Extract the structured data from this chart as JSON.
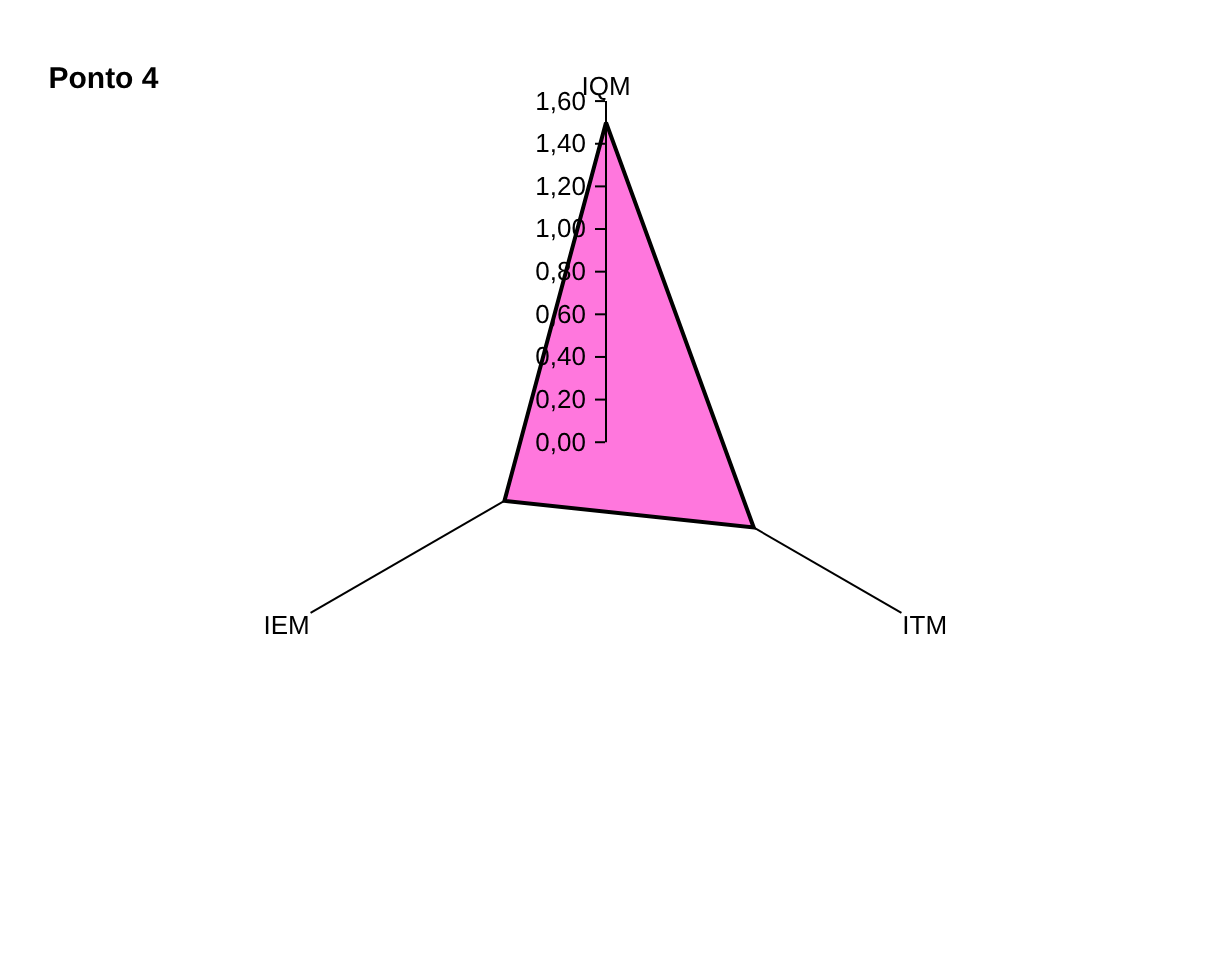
{
  "chart_data": {
    "type": "radar",
    "title": "Ponto 4",
    "categories": [
      "IQM",
      "ITM",
      "IEM"
    ],
    "series": [
      {
        "color": "#ff77dd",
        "values": [
          1.5,
          0.8,
          0.55
        ]
      }
    ],
    "ylim": [
      0,
      1.6
    ],
    "yticks": [
      {
        "value": 0,
        "label": "0,00"
      },
      {
        "value": 0.2,
        "label": "0,20"
      },
      {
        "value": 0.4,
        "label": "0,40"
      },
      {
        "value": 0.6,
        "label": "0,60"
      },
      {
        "value": 0.8,
        "label": "0,80"
      },
      {
        "value": 1.0,
        "label": "1,00"
      },
      {
        "value": 1.2,
        "label": "1,20"
      },
      {
        "value": 1.4,
        "label": "1,40"
      },
      {
        "value": 1.6,
        "label": "1,60"
      }
    ],
    "grid": false
  }
}
